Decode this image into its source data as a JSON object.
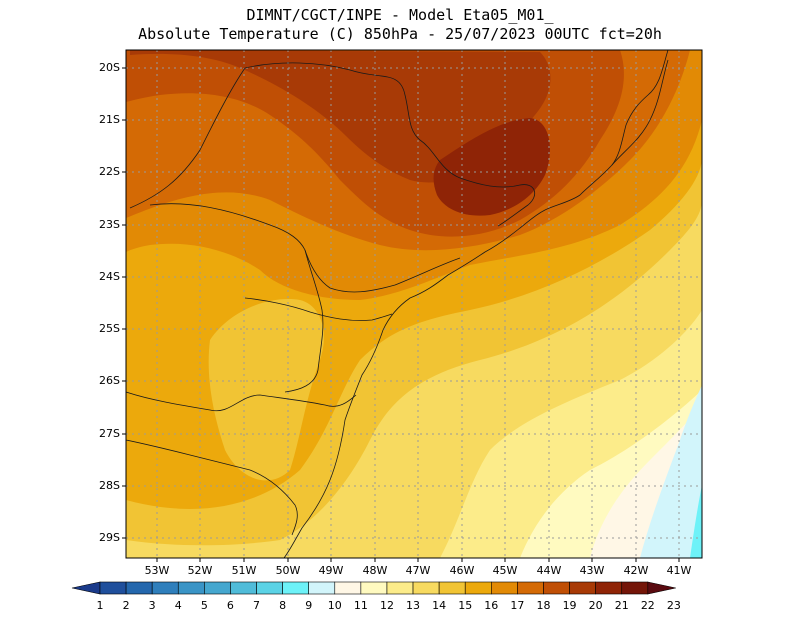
{
  "header": {
    "line1": "DIMNT/CGCT/INPE -  Model Eta05_M01_",
    "line2": "Absolute Temperature (C) 850hPa -  25/07/2023 00UTC fct=20h"
  },
  "axes": {
    "lat_labels": [
      "20S",
      "21S",
      "22S",
      "23S",
      "24S",
      "25S",
      "26S",
      "27S",
      "28S",
      "29S"
    ],
    "lon_labels": [
      "53W",
      "52W",
      "51W",
      "50W",
      "49W",
      "48W",
      "47W",
      "46W",
      "45W",
      "44W",
      "43W",
      "42W",
      "41W"
    ]
  },
  "colorbar": {
    "labels": [
      "1",
      "2",
      "3",
      "4",
      "5",
      "6",
      "7",
      "8",
      "9",
      "10",
      "11",
      "12",
      "13",
      "14",
      "15",
      "16",
      "17",
      "18",
      "19",
      "20",
      "21",
      "22",
      "23"
    ],
    "colors": [
      "#1a3a8a",
      "#1f4f9c",
      "#2467ad",
      "#2f7fbc",
      "#3a94c6",
      "#45a7cf",
      "#50bcd9",
      "#5bd3e6",
      "#6df2f8",
      "#d2f5fb",
      "#fff7e6",
      "#fffac0",
      "#fcec8a",
      "#f7da60",
      "#f1c434",
      "#eca90c",
      "#e28a05",
      "#d46a05",
      "#c04f05",
      "#a83a06",
      "#8f2406",
      "#741508",
      "#5a0a10"
    ]
  },
  "colors": {
    "frame": "#000000",
    "grid": "#9a9a9a",
    "coast": "#1a1a1a"
  }
}
